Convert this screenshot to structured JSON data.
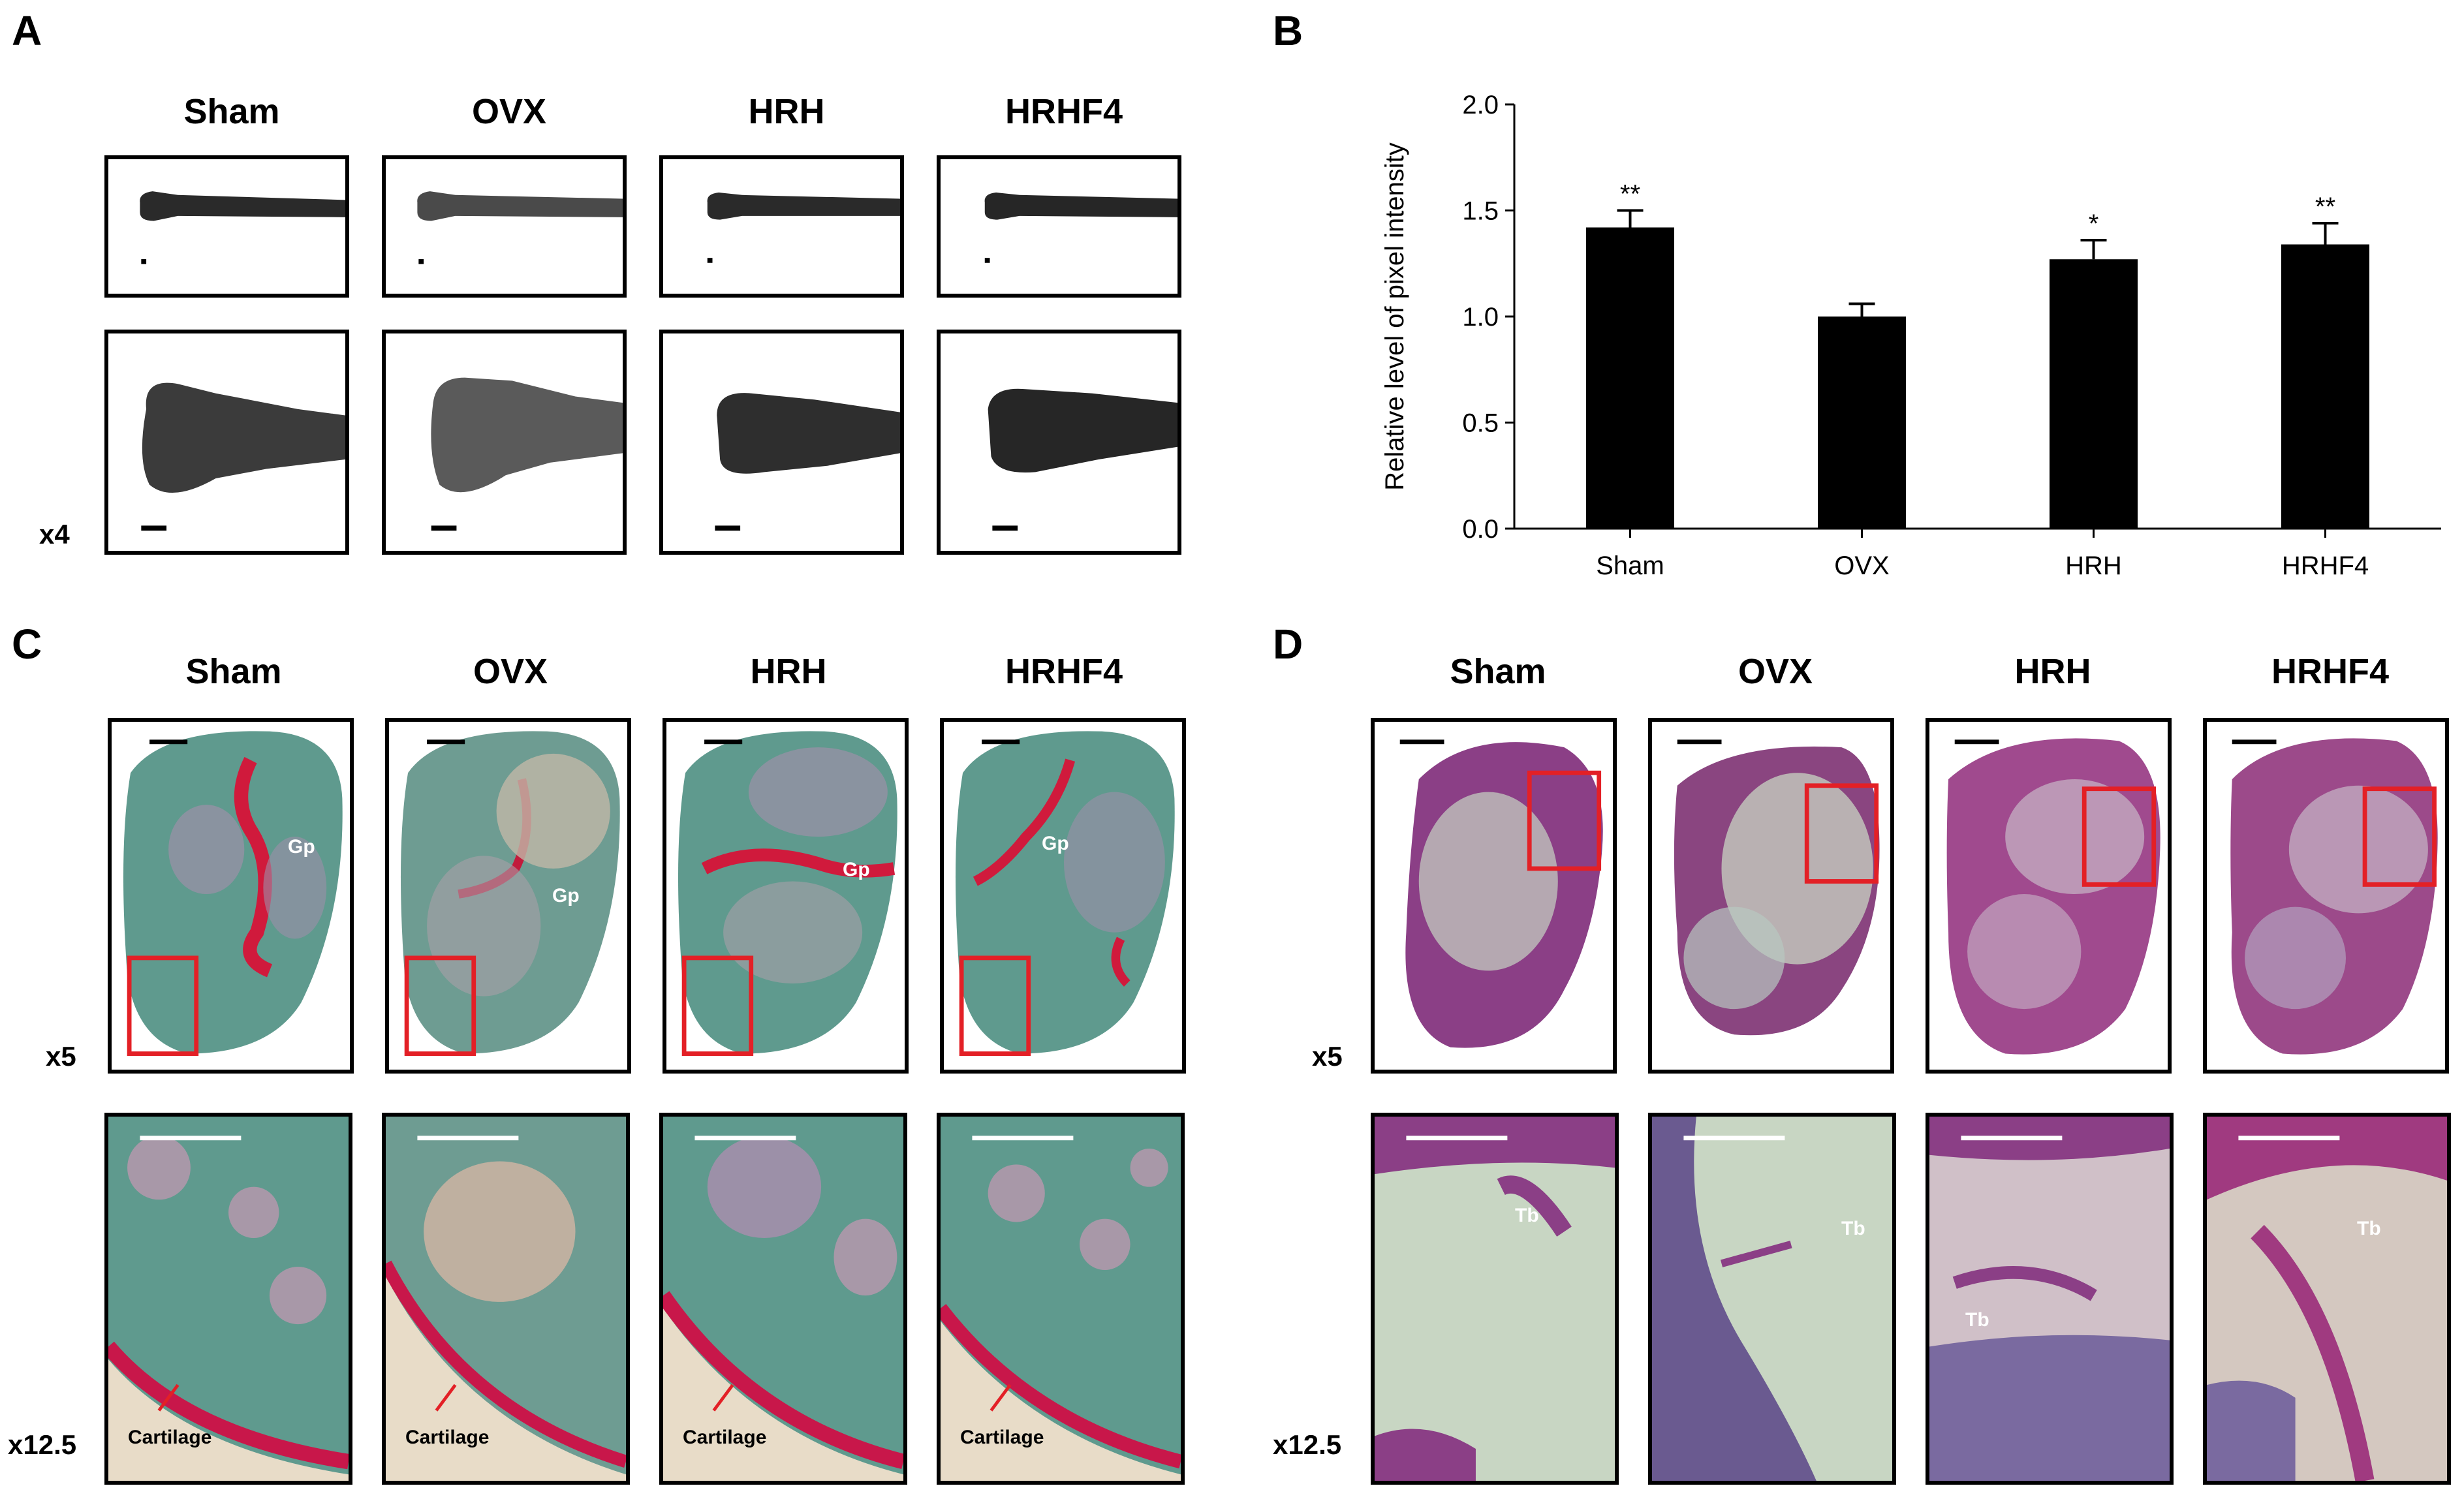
{
  "panels": {
    "A": {
      "letter": "A",
      "columns": [
        "Sham",
        "OVX",
        "HRH",
        "HRHF4"
      ],
      "magnification": "x4"
    },
    "B": {
      "letter": "B"
    },
    "C": {
      "letter": "C",
      "columns": [
        "Sham",
        "OVX",
        "HRH",
        "HRHF4"
      ],
      "mag_top": "x5",
      "mag_bottom": "x12.5",
      "growth_plate": "Gp",
      "cartilage": "Cartilage"
    },
    "D": {
      "letter": "D",
      "columns": [
        "Sham",
        "OVX",
        "HRH",
        "HRHF4"
      ],
      "mag_top": "x5",
      "mag_bottom": "x12.5",
      "trabecula": "Tb"
    }
  },
  "colors": {
    "bar": "#000000",
    "red_box": "#e32026",
    "trichrome_bg": "#5f9a8e",
    "cartilage_red": "#c8174a",
    "he_purple": "#8b3f86",
    "marrow_pale": "#c8d6c3"
  },
  "chart_data": {
    "type": "bar",
    "categories": [
      "Sham",
      "OVX",
      "HRH",
      "HRHF4"
    ],
    "values": [
      1.42,
      1.0,
      1.27,
      1.34
    ],
    "errors": [
      0.08,
      0.06,
      0.09,
      0.1
    ],
    "significance": [
      "**",
      "",
      "*",
      "**"
    ],
    "ylabel": "Relative  level of pixel intensity",
    "ylim": [
      0,
      2.0
    ],
    "yticks": [
      "0.0",
      "0.5",
      "1.0",
      "1.5",
      "2.0"
    ]
  }
}
